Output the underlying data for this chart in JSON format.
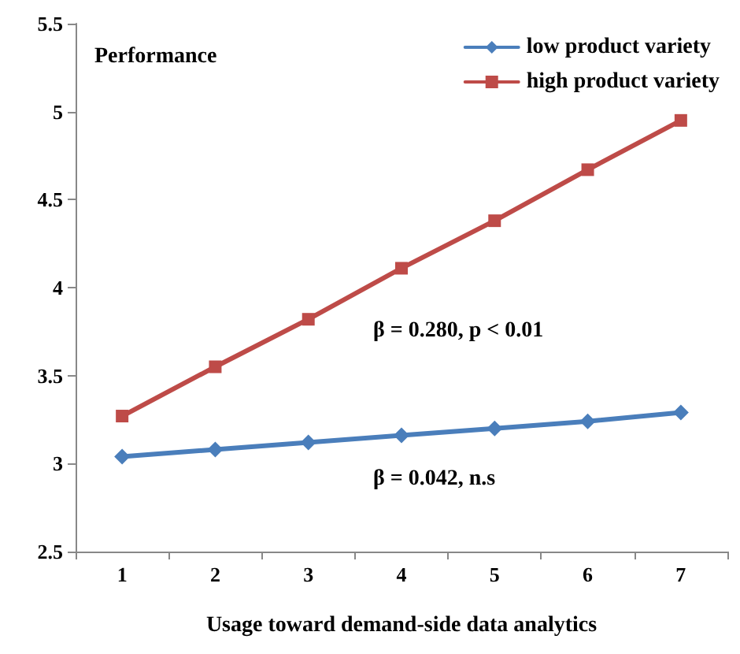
{
  "chart_data": {
    "type": "line",
    "xlabel": "Usage toward demand-side data analytics",
    "ylabel": "Performance",
    "categories": [
      "1",
      "2",
      "3",
      "4",
      "5",
      "6",
      "7"
    ],
    "series": [
      {
        "name": "low product variety",
        "color": "#4a7ebb",
        "marker": "diamond",
        "values": [
          3.04,
          3.08,
          3.12,
          3.16,
          3.2,
          3.24,
          3.29
        ]
      },
      {
        "name": "high product variety",
        "color": "#be4b48",
        "marker": "square",
        "values": [
          3.27,
          3.55,
          3.82,
          4.11,
          4.38,
          4.67,
          4.95
        ]
      }
    ],
    "annotations": [
      "β = 0.280, p < 0.01",
      "β = 0.042, n.s"
    ],
    "ylim": [
      2.5,
      5.5
    ],
    "yticks": [
      2.5,
      3,
      3.5,
      4,
      4.5,
      5,
      5.5
    ],
    "grid": false,
    "legend": "top right",
    "line_style": "solid"
  }
}
